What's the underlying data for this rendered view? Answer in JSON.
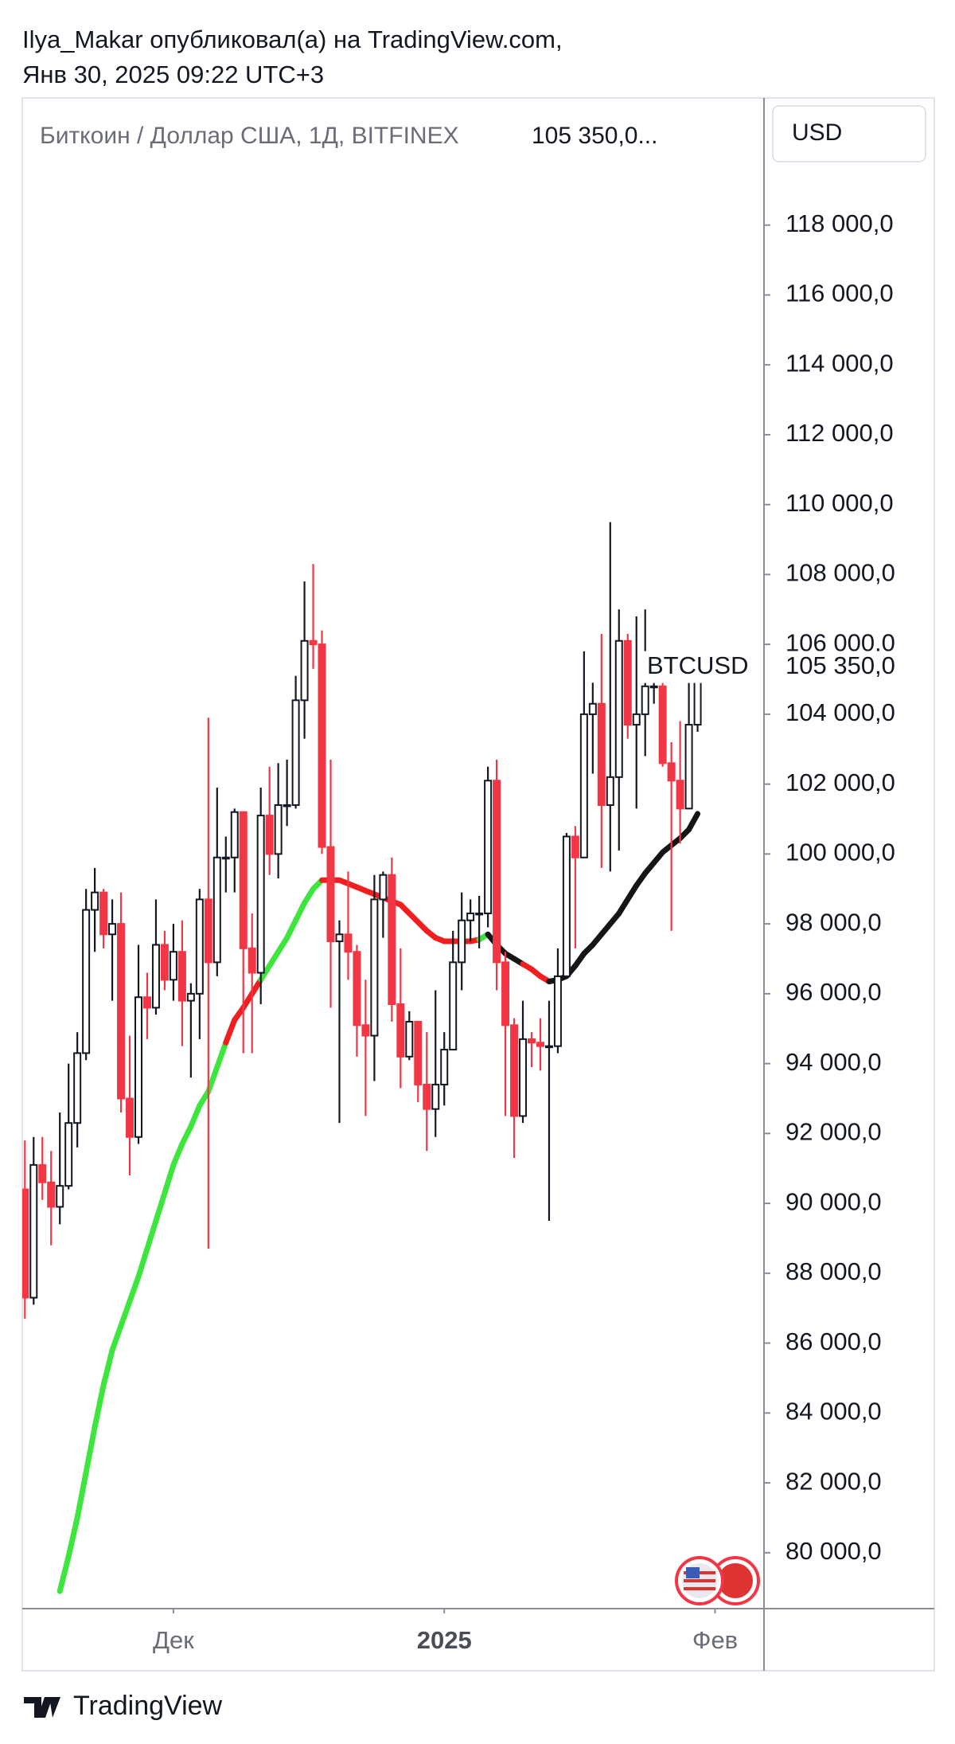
{
  "header": {
    "author_line": "Ilya_Makar опубликовал(а) на TradingView.com,",
    "date_line": "Янв 30, 2025 09:22 UTC+3"
  },
  "chart_data": {
    "type": "candlestick",
    "title": "Биткоин / Доллар США, 1Д, BITFINEX",
    "title_price": "105 350,0...",
    "currency": "USD",
    "symbol": "BTCUSD",
    "open": [
      90400,
      87300,
      91100,
      90600,
      89900,
      90500,
      92300,
      94300,
      98400,
      98900,
      97700,
      98000,
      93000,
      91900,
      95900,
      95600,
      97400,
      96400,
      97200,
      95800,
      96000,
      98700,
      96900,
      99900,
      99900,
      101200,
      97300,
      96600,
      101100,
      100000,
      101400,
      101400,
      104400,
      106100,
      106000,
      100200,
      97500,
      97700,
      97200,
      95100,
      94800,
      98700,
      99400,
      95700,
      94200,
      95200,
      93400,
      92700,
      93400,
      94400,
      96900,
      98100,
      98300,
      98300,
      102100,
      96900,
      95100,
      92500,
      94700,
      94600,
      94500,
      94500,
      96500,
      100500,
      99900,
      104000,
      104300,
      101400,
      102200,
      106100,
      103700,
      104000,
      104800,
      104800,
      102600,
      102100,
      101300,
      103700
    ],
    "high": [
      91800,
      91900,
      91900,
      91500,
      92600,
      94000,
      94900,
      99000,
      99600,
      99000,
      98700,
      98900,
      94800,
      97400,
      96600,
      98700,
      97800,
      98000,
      98100,
      96300,
      99000,
      103900,
      101900,
      100500,
      101300,
      101200,
      98300,
      101900,
      102500,
      102600,
      102700,
      105100,
      107800,
      108300,
      106400,
      102700,
      98100,
      99500,
      97400,
      96400,
      99400,
      99500,
      99900,
      97300,
      95500,
      95200,
      94900,
      96100,
      94900,
      97800,
      98900,
      98700,
      98800,
      102500,
      102700,
      97200,
      95300,
      95800,
      94900,
      95300,
      95800,
      97300,
      100600,
      100800,
      105800,
      104900,
      106300,
      109500,
      107000,
      106300,
      106800,
      107000,
      105200,
      105400,
      103200,
      103800,
      104900,
      105400
    ],
    "low": [
      86700,
      87100,
      90100,
      88800,
      89400,
      90400,
      91600,
      94100,
      97200,
      97300,
      95800,
      92600,
      90800,
      91700,
      94700,
      95400,
      96100,
      95800,
      94500,
      93600,
      94700,
      88700,
      96500,
      98900,
      98900,
      94300,
      94300,
      95700,
      99400,
      99300,
      100800,
      101300,
      103300,
      105300,
      100000,
      95600,
      92300,
      96400,
      94200,
      92500,
      93500,
      97600,
      95200,
      93300,
      94100,
      92900,
      91500,
      91900,
      92800,
      94400,
      96100,
      97500,
      97300,
      97900,
      96100,
      92500,
      91300,
      92300,
      93900,
      93800,
      89500,
      94300,
      96500,
      97300,
      99900,
      102300,
      99600,
      99500,
      100100,
      103300,
      101300,
      102800,
      104300,
      102500,
      97800,
      100300,
      101300,
      103500
    ],
    "close": [
      87300,
      91100,
      90600,
      89900,
      90500,
      92300,
      94300,
      98400,
      98900,
      97700,
      98000,
      93000,
      91900,
      95900,
      95600,
      97400,
      96400,
      97200,
      95800,
      96000,
      98700,
      96900,
      99900,
      99900,
      101200,
      97300,
      96600,
      101100,
      100000,
      101400,
      101400,
      104400,
      106100,
      106000,
      100200,
      97500,
      97700,
      97200,
      95100,
      94800,
      98700,
      99400,
      95700,
      94200,
      95200,
      93400,
      92700,
      93400,
      94400,
      96900,
      98100,
      98300,
      98300,
      102100,
      96900,
      95100,
      92500,
      94700,
      94600,
      94500,
      94500,
      96500,
      100500,
      99900,
      104000,
      104300,
      101400,
      102200,
      106100,
      103700,
      104000,
      104800,
      104800,
      102600,
      102100,
      101300,
      103700,
      105350
    ],
    "up_color": "#131722",
    "down_color": "#f23645",
    "ma": {
      "values": [
        null,
        null,
        null,
        null,
        78900,
        79900,
        81000,
        82300,
        83600,
        84800,
        85800,
        86500,
        87200,
        87900,
        88700,
        89500,
        90300,
        91100,
        91700,
        92200,
        92800,
        93200,
        93900,
        94600,
        95250,
        95600,
        96000,
        96400,
        96800,
        97200,
        97600,
        98100,
        98600,
        99000,
        99250,
        99250,
        99250,
        99150,
        99050,
        98950,
        98850,
        98750,
        98650,
        98550,
        98300,
        98050,
        97800,
        97600,
        97500,
        97500,
        97500,
        97500,
        97550,
        97700,
        97400,
        97150,
        97000,
        96850,
        96700,
        96500,
        96350,
        96400,
        96500,
        96800,
        97150,
        97400,
        97700,
        98000,
        98300,
        98700,
        99100,
        99450,
        99750,
        100050,
        100250,
        100450,
        100700,
        101150
      ],
      "colors": [
        null,
        null,
        null,
        null,
        null,
        "#3de63d",
        "#3de63d",
        "#3de63d",
        "#3de63d",
        "#3de63d",
        "#3de63d",
        "#3de63d",
        "#3de63d",
        "#3de63d",
        "#3de63d",
        "#3de63d",
        "#3de63d",
        "#3de63d",
        "#3de63d",
        "#3de63d",
        "#3de63d",
        "#3de63d",
        "#3de63d",
        "#3de63d",
        "#f01e1e",
        "#f01e1e",
        "#f01e1e",
        "#f01e1e",
        "#3de63d",
        "#3de63d",
        "#3de63d",
        "#3de63d",
        "#3de63d",
        "#3de63d",
        "#3de63d",
        "#f01e1e",
        "#f01e1e",
        "#f01e1e",
        "#f01e1e",
        "#f01e1e",
        "#f01e1e",
        "#f01e1e",
        "#f01e1e",
        "#f01e1e",
        "#f01e1e",
        "#f01e1e",
        "#f01e1e",
        "#f01e1e",
        "#f01e1e",
        "#f01e1e",
        "#f01e1e",
        "#f01e1e",
        "#f01e1e",
        "#3de63d",
        "#151515",
        "#151515",
        "#151515",
        "#151515",
        "#f01e1e",
        "#f01e1e",
        "#f01e1e",
        "#151515",
        "#151515",
        "#151515",
        "#151515",
        "#151515",
        "#151515",
        "#151515",
        "#151515",
        "#151515",
        "#151515",
        "#151515",
        "#151515",
        "#151515",
        "#151515",
        "#151515",
        "#151515",
        "#151515"
      ]
    },
    "last_price": {
      "value": 105350,
      "label": "105 350,0"
    },
    "xlim": [
      -0.3,
      84.6
    ],
    "xticks": [
      {
        "value": 17,
        "label": "Дек"
      },
      {
        "value": 48,
        "label": "2025"
      },
      {
        "value": 79,
        "label": "Фев"
      }
    ],
    "ylim": [
      78400,
      121640
    ],
    "yticks": [
      {
        "value": 80000,
        "label": "80 000,0"
      },
      {
        "value": 82000,
        "label": "82 000,0"
      },
      {
        "value": 84000,
        "label": "84 000,0"
      },
      {
        "value": 86000,
        "label": "86 000,0"
      },
      {
        "value": 88000,
        "label": "88 000,0"
      },
      {
        "value": 90000,
        "label": "90 000,0"
      },
      {
        "value": 92000,
        "label": "92 000,0"
      },
      {
        "value": 94000,
        "label": "94 000,0"
      },
      {
        "value": 96000,
        "label": "96 000,0"
      },
      {
        "value": 98000,
        "label": "98 000,0"
      },
      {
        "value": 100000,
        "label": "100 000,0"
      },
      {
        "value": 102000,
        "label": "102 000,0"
      },
      {
        "value": 104000,
        "label": "104 000,0"
      },
      {
        "value": 106000,
        "label": "106 000,0"
      },
      {
        "value": 108000,
        "label": "108 000,0"
      },
      {
        "value": 110000,
        "label": "110 000,0"
      },
      {
        "value": 112000,
        "label": "112 000,0"
      },
      {
        "value": 114000,
        "label": "114 000,0"
      },
      {
        "value": 116000,
        "label": "116 000,0"
      },
      {
        "value": 118000,
        "label": "118 000,0"
      }
    ],
    "grid": false
  },
  "footer": {
    "brand": "TradingView"
  }
}
